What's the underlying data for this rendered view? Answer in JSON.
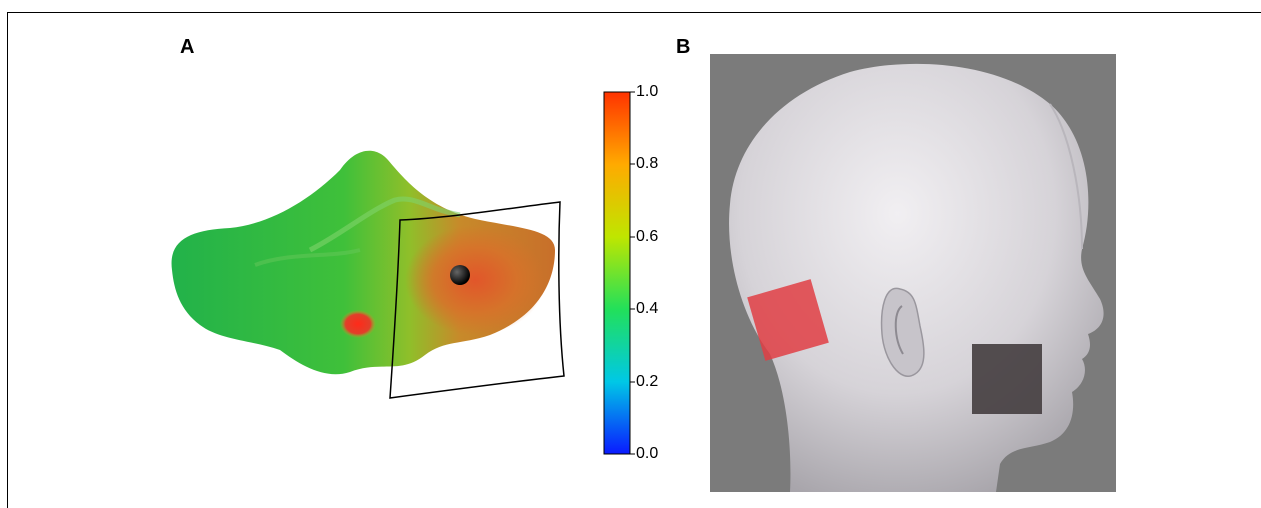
{
  "panels": {
    "a": {
      "label": "A"
    },
    "b": {
      "label": "B"
    }
  },
  "colorbar": {
    "ticks": [
      "1.0",
      "0.8",
      "0.6",
      "0.4",
      "0.2",
      "0.0"
    ],
    "colors": [
      "#ff3300",
      "#ffaa00",
      "#bfe600",
      "#22e05a",
      "#00c8e6",
      "#0a1aff"
    ]
  },
  "colors": {
    "head_background": "#7b7b7b",
    "stimulus_square_1": "#e03e44",
    "stimulus_square_2": "#464042"
  }
}
